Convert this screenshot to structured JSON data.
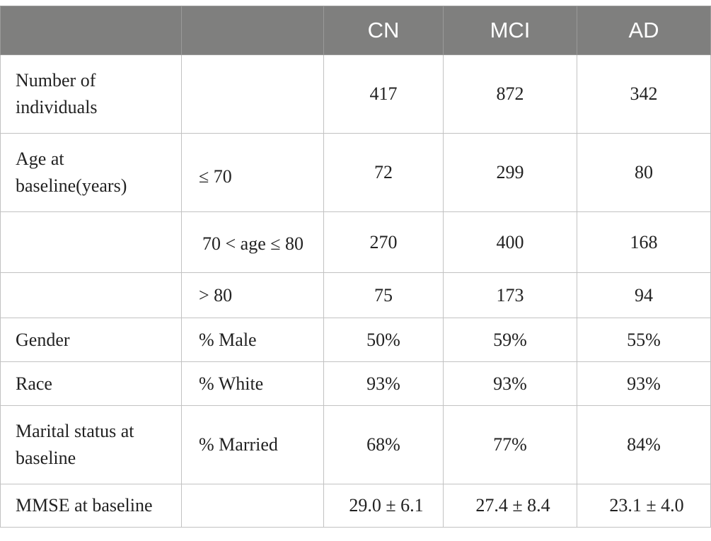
{
  "table": {
    "headers": [
      "",
      "",
      "CN",
      "MCI",
      "AD"
    ],
    "rows": [
      {
        "row_label": "Number of individuals",
        "sub_label": "",
        "cells": [
          "417",
          "872",
          "342"
        ]
      },
      {
        "row_label": "Age at baseline(years)",
        "sub_label": "≤ 70",
        "cells": [
          "72",
          "299",
          "80"
        ]
      },
      {
        "row_label": "",
        "sub_label": "70 < age ≤ 80",
        "cells": [
          "270",
          "400",
          "168"
        ]
      },
      {
        "row_label": "",
        "sub_label": "> 80",
        "cells": [
          "75",
          "173",
          "94"
        ]
      },
      {
        "row_label": "Gender",
        "sub_label": "% Male",
        "cells": [
          "50%",
          "59%",
          "55%"
        ]
      },
      {
        "row_label": "Race",
        "sub_label": "% White",
        "cells": [
          "93%",
          "93%",
          "93%"
        ]
      },
      {
        "row_label": "Marital status at baseline",
        "sub_label": "% Married",
        "cells": [
          "68%",
          "77%",
          "84%"
        ]
      },
      {
        "row_label": "MMSE at baseline",
        "sub_label": "",
        "cells": [
          "29.0 ± 6.1",
          "27.4 ± 8.4",
          "23.1 ± 4.0"
        ]
      }
    ]
  }
}
